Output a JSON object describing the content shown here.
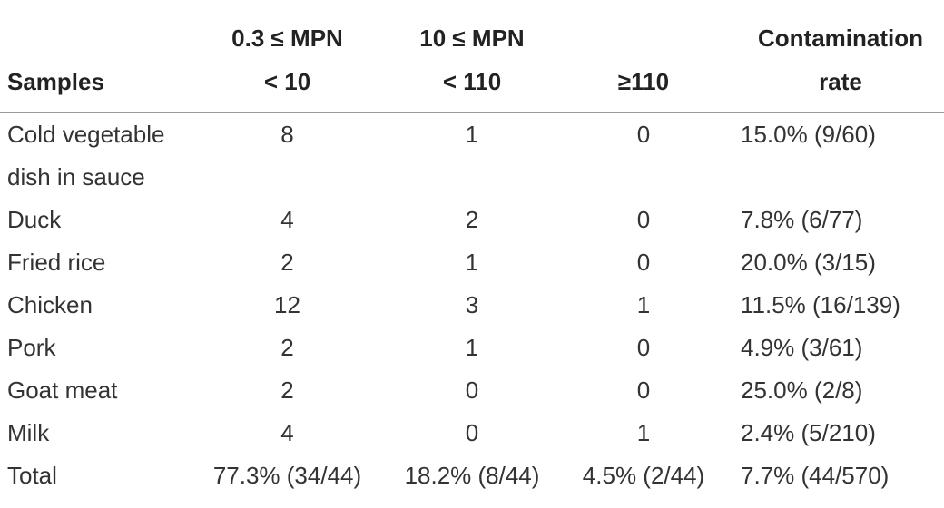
{
  "table": {
    "header": [
      [
        "Samples"
      ],
      [
        "0.3 ≤ MPN",
        "< 10"
      ],
      [
        "10 ≤ MPN",
        "< 110"
      ],
      [
        "≥110"
      ],
      [
        "Contamination",
        "rate"
      ]
    ],
    "rows": [
      [
        "Cold vegetable dish in sauce",
        "8",
        "1",
        "0",
        "15.0% (9/60)"
      ],
      [
        "Duck",
        "4",
        "2",
        "0",
        "7.8% (6/77)"
      ],
      [
        "Fried rice",
        "2",
        "1",
        "0",
        "20.0% (3/15)"
      ],
      [
        "Chicken",
        "12",
        "3",
        "1",
        "11.5% (16/139)"
      ],
      [
        "Pork",
        "2",
        "1",
        "0",
        "4.9% (3/61)"
      ],
      [
        "Goat meat",
        "2",
        "0",
        "0",
        "25.0% (2/8)"
      ],
      [
        "Milk",
        "4",
        "0",
        "1",
        "2.4% (5/210)"
      ],
      [
        "Total",
        "77.3% (34/44)",
        "18.2% (8/44)",
        "4.5% (2/44)",
        "7.7% (44/570)"
      ]
    ]
  }
}
